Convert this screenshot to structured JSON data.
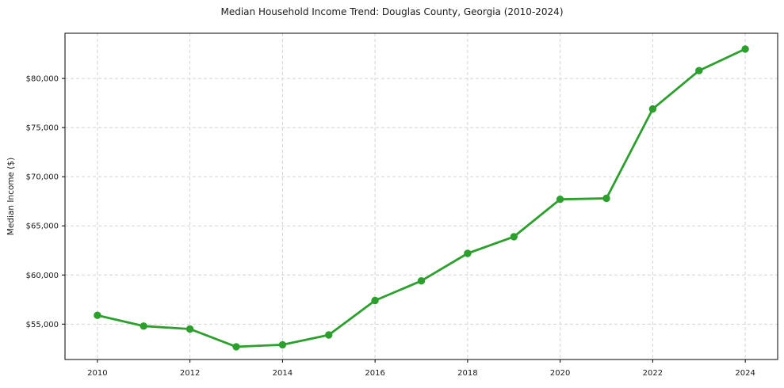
{
  "chart_data": {
    "type": "line",
    "title": "Median Household Income Trend: Douglas County, Georgia (2010-2024)",
    "ylabel": "Median Income ($)",
    "xlabel": "",
    "x": [
      2010,
      2011,
      2012,
      2013,
      2014,
      2015,
      2016,
      2017,
      2018,
      2019,
      2020,
      2021,
      2022,
      2023,
      2024
    ],
    "values": [
      55900,
      54800,
      54500,
      52700,
      52900,
      53900,
      57400,
      59400,
      62200,
      63900,
      67700,
      67800,
      76900,
      80800,
      83000
    ],
    "xticks": [
      2010,
      2012,
      2014,
      2016,
      2018,
      2020,
      2022,
      2024
    ],
    "xtick_labels": [
      "2010",
      "2012",
      "2014",
      "2016",
      "2018",
      "2020",
      "2022",
      "2024"
    ],
    "yticks": [
      55000,
      60000,
      65000,
      70000,
      75000,
      80000
    ],
    "ytick_labels": [
      "$55,000",
      "$60,000",
      "$65,000",
      "$70,000",
      "$75,000",
      "$80,000"
    ],
    "xlim": [
      2009.3,
      2024.7
    ],
    "ylim": [
      51400,
      84600
    ],
    "grid": true,
    "grid_style": "dashed",
    "legend_position": "none",
    "line_color": "#2ca02c",
    "marker": "circle",
    "grid_color": "#d3d3d3",
    "axis_color": "#000000",
    "text_color": "#1a1a1a",
    "background": "#ffffff"
  }
}
